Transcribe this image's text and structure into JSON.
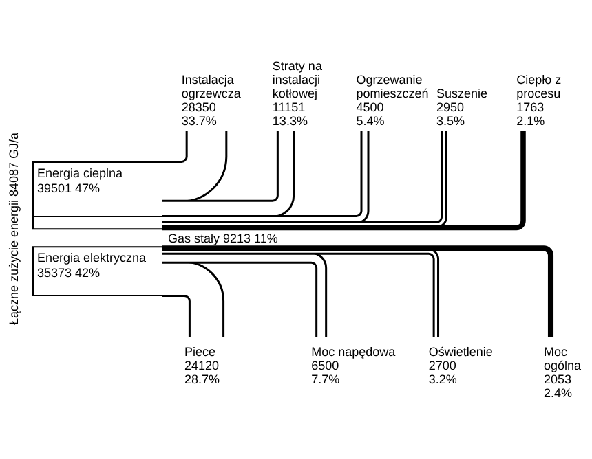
{
  "chart_data": {
    "type": "other",
    "ylabel": "Łączne zużycie energii 84087 GJ/a",
    "categories": [
      "Energia cieplna",
      "Gas stały",
      "Energia elektryczna",
      "Instalacja ogrzewcza",
      "Straty na instalacji kotłowej",
      "Ogrzewanie pomieszczeń",
      "Suszenie",
      "Ciepło z procesu",
      "Piece",
      "Moc napędowa",
      "Oświetlenie",
      "Moc ogólna"
    ],
    "series": [
      {
        "values": [
          39501,
          9213,
          35373,
          null,
          null,
          null,
          null,
          null,
          null,
          null,
          null,
          null
        ],
        "value_labels": [
          "39501 47%",
          "9213 11%",
          "35373 42%",
          null,
          null,
          null,
          null,
          null,
          null,
          null,
          null,
          null
        ]
      },
      {
        "values": [
          null,
          null,
          null,
          28350,
          11151,
          4500,
          2950,
          1763,
          null,
          null,
          null,
          null
        ],
        "value_labels": [
          null,
          null,
          null,
          "28350 33.7%",
          "11151 13.3%",
          "4500 5.4%",
          "2950 3.5%",
          "1763 2.1%",
          null,
          null,
          null,
          null
        ]
      },
      {
        "values": [
          null,
          null,
          null,
          null,
          null,
          null,
          null,
          null,
          24120,
          6500,
          2700,
          2053
        ],
        "value_labels": [
          null,
          null,
          null,
          null,
          null,
          null,
          null,
          null,
          "24120 28.7%",
          "6500 7.7%",
          "2700 3.2%",
          "2053 2.4%"
        ]
      }
    ]
  }
}
